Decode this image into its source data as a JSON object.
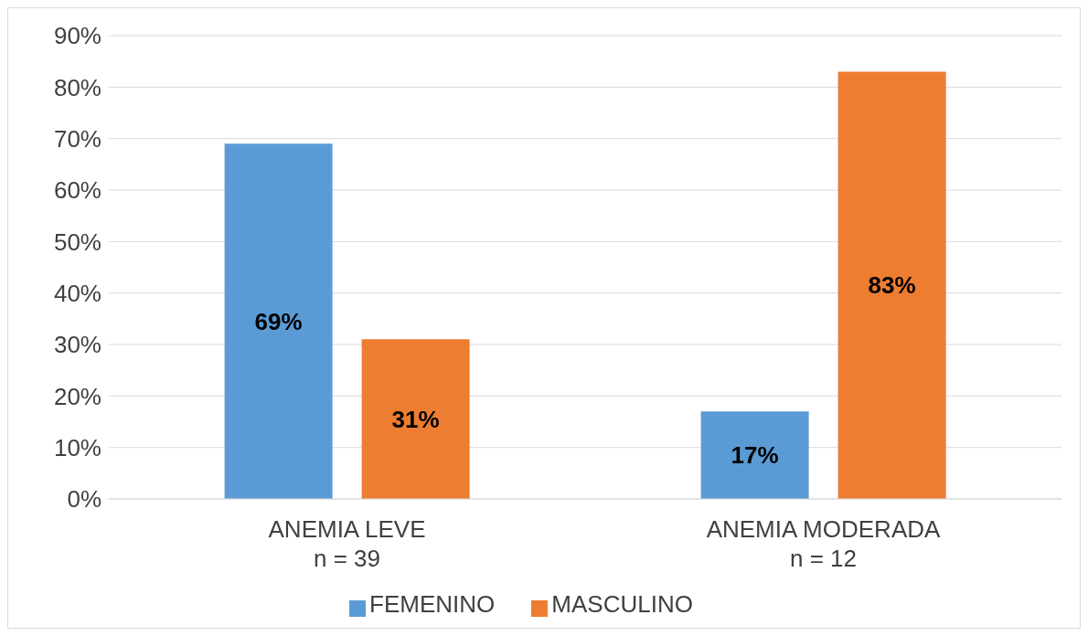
{
  "chart_data": {
    "type": "bar",
    "categories": [
      "ANEMIA LEVE\nn = 39",
      "ANEMIA MODERADA\nn = 12"
    ],
    "series": [
      {
        "name": "FEMENINO",
        "color": "#5b9bd5",
        "values": [
          69,
          17
        ],
        "value_labels": [
          "69%",
          "17%"
        ]
      },
      {
        "name": "MASCULINO",
        "color": "#ed7d31",
        "values": [
          31,
          83
        ],
        "value_labels": [
          "31%",
          "83%"
        ]
      }
    ],
    "ylim": [
      0,
      90
    ],
    "yticks": [
      {
        "value": 0,
        "label": "0%"
      },
      {
        "value": 10,
        "label": "10%"
      },
      {
        "value": 20,
        "label": "20%"
      },
      {
        "value": 30,
        "label": "30%"
      },
      {
        "value": 40,
        "label": "40%"
      },
      {
        "value": 50,
        "label": "50%"
      },
      {
        "value": 60,
        "label": "60%"
      },
      {
        "value": 70,
        "label": "70%"
      },
      {
        "value": 80,
        "label": "80%"
      },
      {
        "value": 90,
        "label": "90%"
      }
    ],
    "grid": "y",
    "legend": "bottom"
  }
}
